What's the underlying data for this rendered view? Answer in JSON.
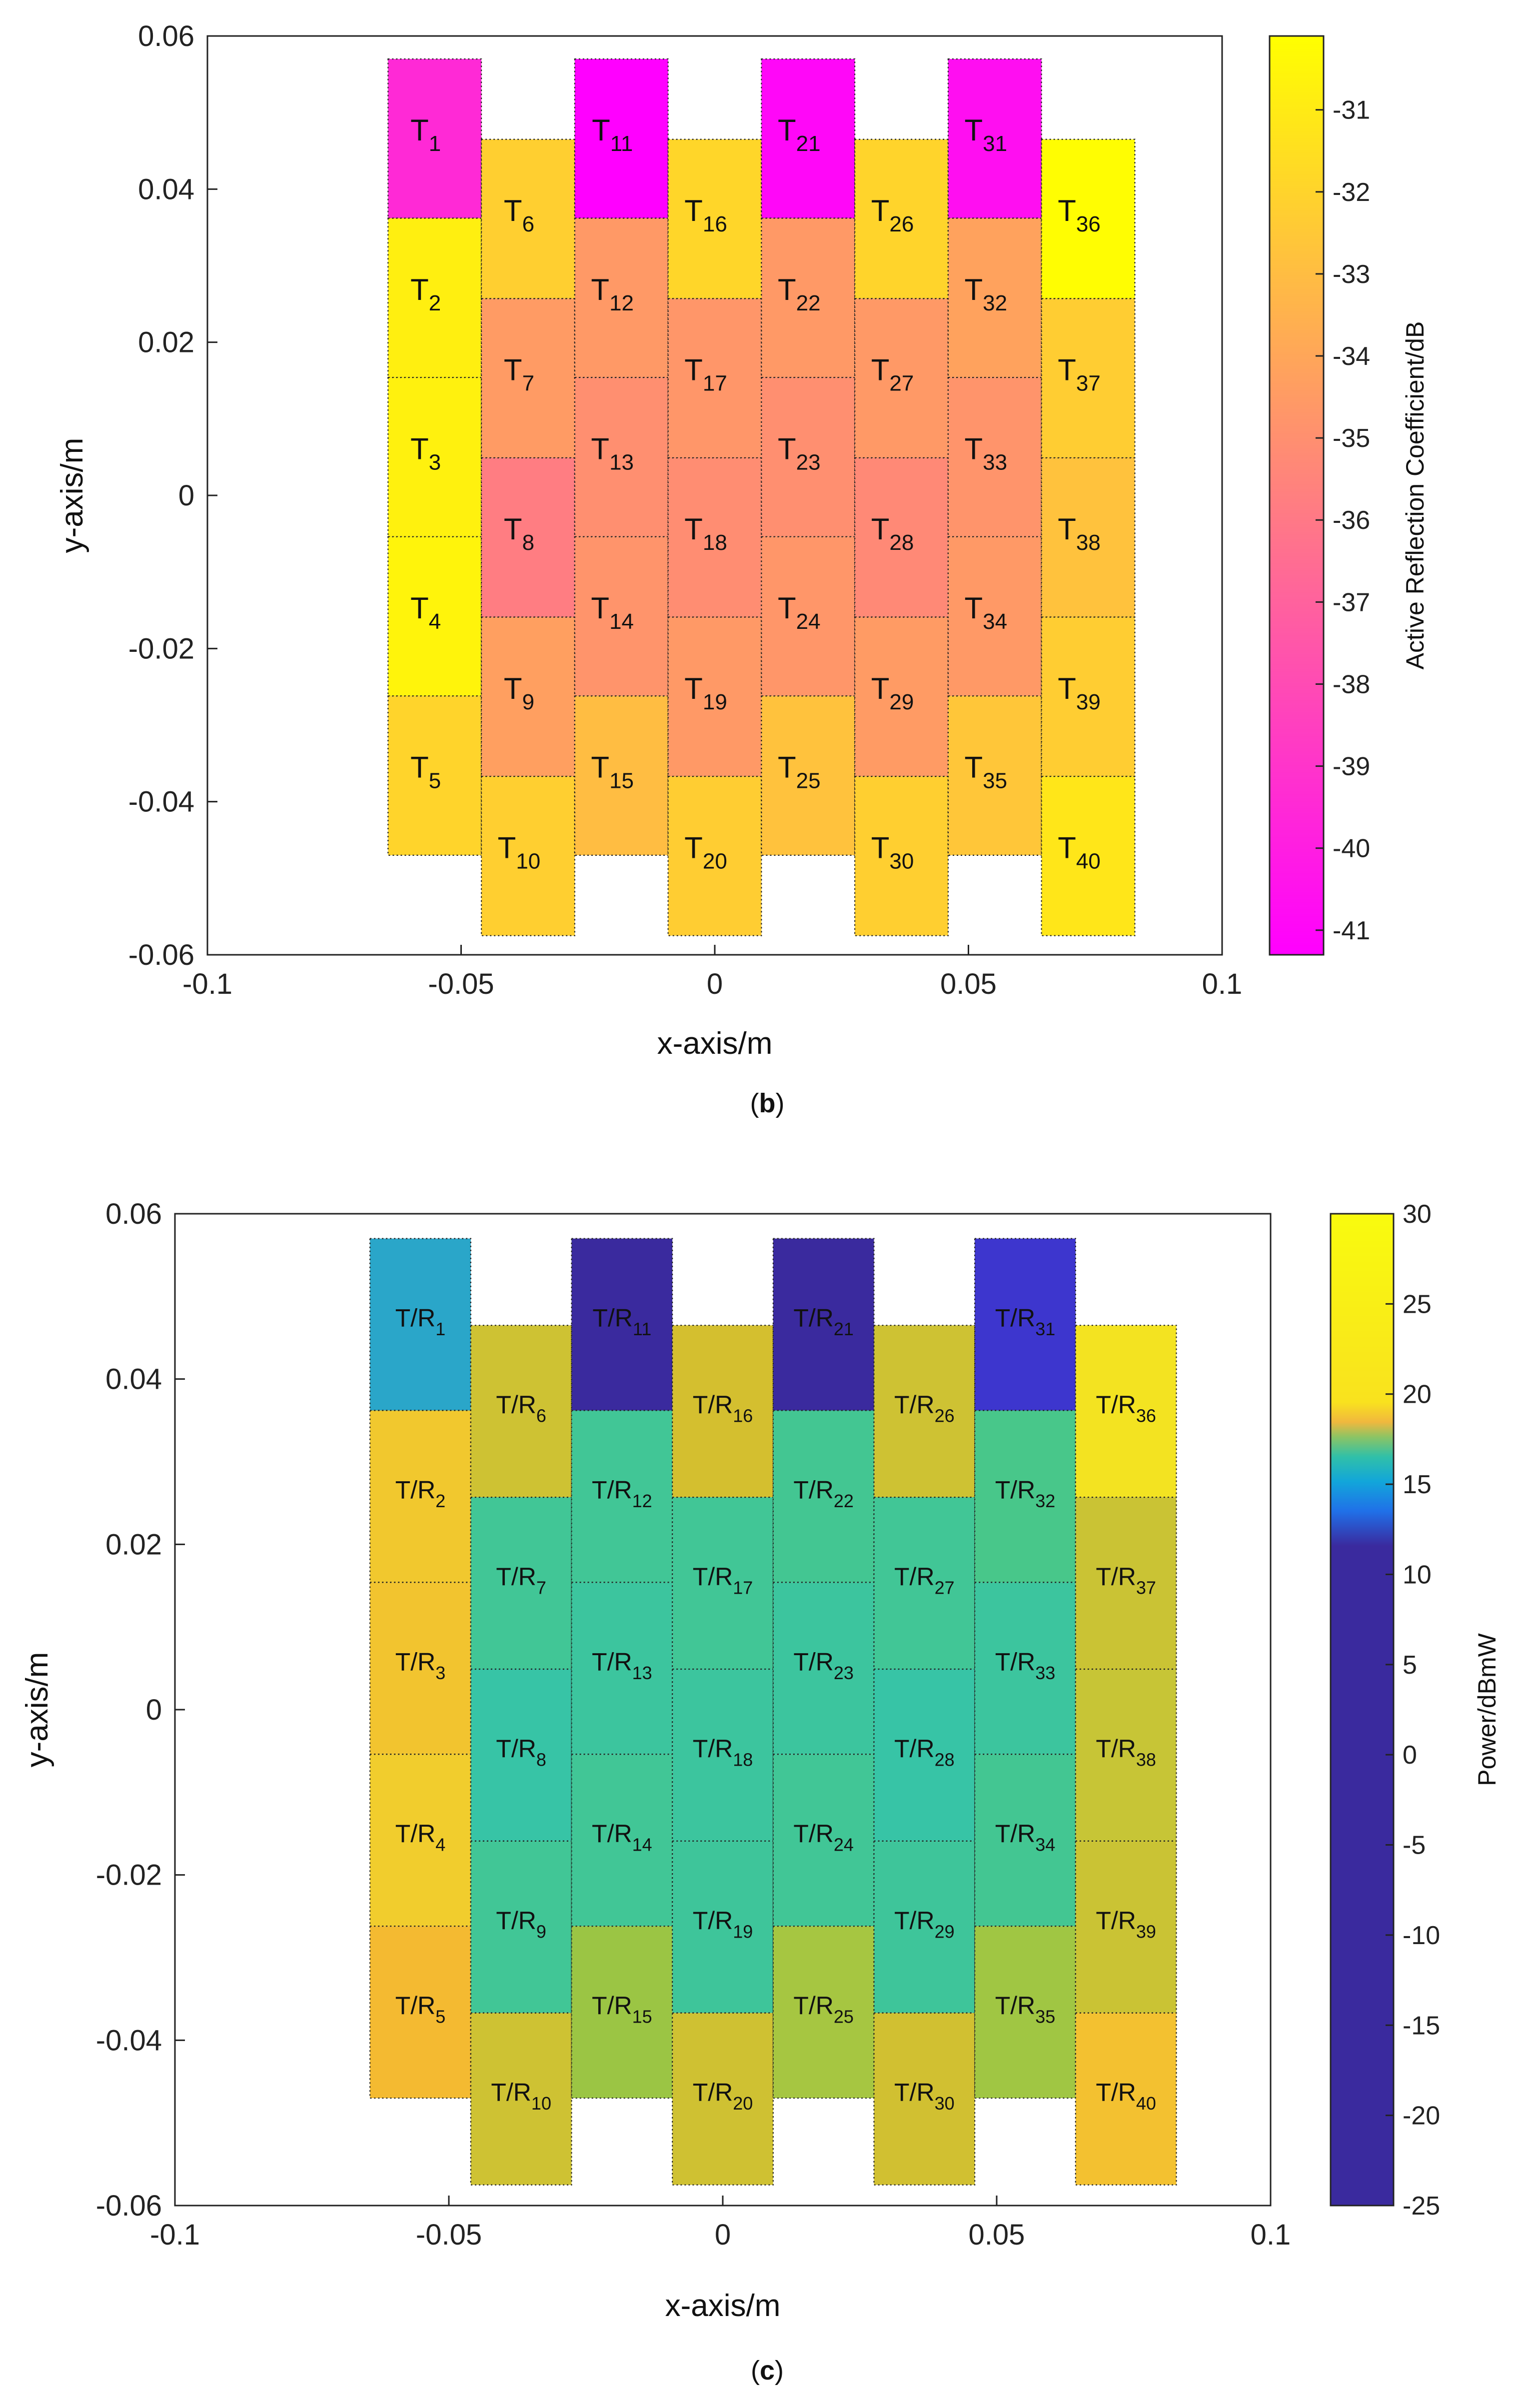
{
  "chart_data": [
    {
      "panel_label": "b",
      "type": "heatmap",
      "title": "",
      "xlabel": "x-axis/m",
      "ylabel": "y-axis/m",
      "xlim": [
        -0.1,
        0.1
      ],
      "ylim": [
        -0.06,
        0.06
      ],
      "x_ticks": [
        -0.1,
        -0.05,
        0,
        0.05,
        0.1
      ],
      "x_tick_labels": [
        "-0.1",
        "-0.05",
        "0",
        "0.05",
        "0.1"
      ],
      "y_ticks": [
        0.06,
        0.04,
        0.02,
        0,
        -0.02,
        -0.04,
        -0.06
      ],
      "y_tick_labels": [
        "0.06",
        "0.04",
        "0.02",
        "0",
        "-0.02",
        "-0.04",
        "-0.06"
      ],
      "grid": false,
      "element_prefix": "T",
      "colorbar": {
        "label": "Active Reflection Coefficient/dB",
        "range": [
          -41.3,
          -30.1
        ],
        "ticks": [
          -31,
          -32,
          -33,
          -34,
          -35,
          -36,
          -37,
          -38,
          -39,
          -40,
          -41
        ],
        "tick_labels": [
          "-31",
          "-32",
          "-33",
          "-34",
          "-35",
          "-36",
          "-37",
          "-38",
          "-39",
          "-40",
          "-41"
        ],
        "colormap": "spring"
      },
      "column_x_centers": [
        -0.0552,
        -0.0368,
        -0.0184,
        0,
        0.0184,
        0.0368,
        0.0552,
        0.0736
      ],
      "column_top_y": [
        0.057,
        0.0465,
        0.057,
        0.0465,
        0.057,
        0.0465,
        0.057,
        0.0465
      ],
      "cell_width": 0.0184,
      "cell_height": 0.0208,
      "elements": [
        {
          "id": 1,
          "col": 0,
          "row": 0,
          "value": -39.5
        },
        {
          "id": 2,
          "col": 0,
          "row": 1,
          "value": -30.8
        },
        {
          "id": 3,
          "col": 0,
          "row": 2,
          "value": -30.7
        },
        {
          "id": 4,
          "col": 0,
          "row": 3,
          "value": -30.6
        },
        {
          "id": 5,
          "col": 0,
          "row": 4,
          "value": -32.0
        },
        {
          "id": 6,
          "col": 1,
          "row": 0,
          "value": -32.2
        },
        {
          "id": 7,
          "col": 1,
          "row": 1,
          "value": -34.5
        },
        {
          "id": 8,
          "col": 1,
          "row": 2,
          "value": -35.8
        },
        {
          "id": 9,
          "col": 1,
          "row": 3,
          "value": -34.3
        },
        {
          "id": 10,
          "col": 1,
          "row": 4,
          "value": -32.2
        },
        {
          "id": 11,
          "col": 2,
          "row": 0,
          "value": -41.3
        },
        {
          "id": 12,
          "col": 2,
          "row": 1,
          "value": -34.6
        },
        {
          "id": 13,
          "col": 2,
          "row": 2,
          "value": -35.0
        },
        {
          "id": 14,
          "col": 2,
          "row": 3,
          "value": -34.8
        },
        {
          "id": 15,
          "col": 2,
          "row": 4,
          "value": -33.0
        },
        {
          "id": 16,
          "col": 3,
          "row": 0,
          "value": -31.9
        },
        {
          "id": 17,
          "col": 3,
          "row": 1,
          "value": -34.7
        },
        {
          "id": 18,
          "col": 3,
          "row": 2,
          "value": -35.1
        },
        {
          "id": 19,
          "col": 3,
          "row": 3,
          "value": -34.6
        },
        {
          "id": 20,
          "col": 3,
          "row": 4,
          "value": -32.3
        },
        {
          "id": 21,
          "col": 4,
          "row": 0,
          "value": -41.0
        },
        {
          "id": 22,
          "col": 4,
          "row": 1,
          "value": -34.6
        },
        {
          "id": 23,
          "col": 4,
          "row": 2,
          "value": -35.0
        },
        {
          "id": 24,
          "col": 4,
          "row": 3,
          "value": -34.7
        },
        {
          "id": 25,
          "col": 4,
          "row": 4,
          "value": -32.8
        },
        {
          "id": 26,
          "col": 5,
          "row": 0,
          "value": -32.0
        },
        {
          "id": 27,
          "col": 5,
          "row": 1,
          "value": -34.6
        },
        {
          "id": 28,
          "col": 5,
          "row": 2,
          "value": -35.3
        },
        {
          "id": 29,
          "col": 5,
          "row": 3,
          "value": -34.5
        },
        {
          "id": 30,
          "col": 5,
          "row": 4,
          "value": -32.2
        },
        {
          "id": 31,
          "col": 6,
          "row": 0,
          "value": -40.7
        },
        {
          "id": 32,
          "col": 6,
          "row": 1,
          "value": -34.2
        },
        {
          "id": 33,
          "col": 6,
          "row": 2,
          "value": -34.8
        },
        {
          "id": 34,
          "col": 6,
          "row": 3,
          "value": -34.6
        },
        {
          "id": 35,
          "col": 6,
          "row": 4,
          "value": -32.6
        },
        {
          "id": 36,
          "col": 7,
          "row": 0,
          "value": -30.2
        },
        {
          "id": 37,
          "col": 7,
          "row": 1,
          "value": -32.3
        },
        {
          "id": 38,
          "col": 7,
          "row": 2,
          "value": -32.8
        },
        {
          "id": 39,
          "col": 7,
          "row": 3,
          "value": -32.3
        },
        {
          "id": 40,
          "col": 7,
          "row": 4,
          "value": -31.2
        }
      ]
    },
    {
      "panel_label": "c",
      "type": "heatmap",
      "title": "",
      "xlabel": "x-axis/m",
      "ylabel": "y-axis/m",
      "xlim": [
        -0.1,
        0.1
      ],
      "ylim": [
        -0.06,
        0.06
      ],
      "x_ticks": [
        -0.1,
        -0.05,
        0,
        0.05,
        0.1
      ],
      "x_tick_labels": [
        "-0.1",
        "-0.05",
        "0",
        "0.05",
        "0.1"
      ],
      "y_ticks": [
        0.06,
        0.04,
        0.02,
        0,
        -0.02,
        -0.04,
        -0.06
      ],
      "y_tick_labels": [
        "0.06",
        "0.04",
        "0.02",
        "0",
        "-0.02",
        "-0.04",
        "-0.06"
      ],
      "grid": false,
      "element_prefix": "T/R",
      "colorbar": {
        "label": "Power/dBmW",
        "range": [
          -25,
          30
        ],
        "ticks": [
          30,
          25,
          20,
          15,
          10,
          5,
          0,
          -5,
          -10,
          -15,
          -20,
          -25
        ],
        "tick_labels": [
          "30",
          "25",
          "20",
          "15",
          "10",
          "5",
          "0",
          "-5",
          "-10",
          "-15",
          "-20",
          "-25"
        ],
        "colormap": "parula-like"
      },
      "column_x_centers": [
        -0.0552,
        -0.0368,
        -0.0184,
        0,
        0.0184,
        0.0368,
        0.0552,
        0.0736
      ],
      "column_top_y": [
        0.057,
        0.0465,
        0.057,
        0.0465,
        0.057,
        0.0465,
        0.057,
        0.0465
      ],
      "cell_width": 0.0184,
      "cell_height": 0.0208,
      "elements": [
        {
          "id": 1,
          "col": 0,
          "row": 0,
          "value": 13.8
        },
        {
          "id": 2,
          "col": 0,
          "row": 1,
          "value": 19.0
        },
        {
          "id": 3,
          "col": 0,
          "row": 2,
          "value": 18.6
        },
        {
          "id": 4,
          "col": 0,
          "row": 3,
          "value": 19.4
        },
        {
          "id": 5,
          "col": 0,
          "row": 4,
          "value": 17.7
        },
        {
          "id": 6,
          "col": 1,
          "row": 0,
          "value": 17.0
        },
        {
          "id": 7,
          "col": 1,
          "row": 1,
          "value": 15.1
        },
        {
          "id": 8,
          "col": 1,
          "row": 2,
          "value": 14.7
        },
        {
          "id": 9,
          "col": 1,
          "row": 3,
          "value": 15.1
        },
        {
          "id": 10,
          "col": 1,
          "row": 4,
          "value": 17.0
        },
        {
          "id": 11,
          "col": 2,
          "row": 0,
          "value": -20.0
        },
        {
          "id": 12,
          "col": 2,
          "row": 1,
          "value": 15.1
        },
        {
          "id": 13,
          "col": 2,
          "row": 2,
          "value": 14.9
        },
        {
          "id": 14,
          "col": 2,
          "row": 3,
          "value": 15.1
        },
        {
          "id": 15,
          "col": 2,
          "row": 4,
          "value": 15.8
        },
        {
          "id": 16,
          "col": 3,
          "row": 0,
          "value": 17.4
        },
        {
          "id": 17,
          "col": 3,
          "row": 1,
          "value": 15.1
        },
        {
          "id": 18,
          "col": 3,
          "row": 2,
          "value": 14.9
        },
        {
          "id": 19,
          "col": 3,
          "row": 3,
          "value": 15.0
        },
        {
          "id": 20,
          "col": 3,
          "row": 4,
          "value": 17.1
        },
        {
          "id": 21,
          "col": 4,
          "row": 0,
          "value": -20.0
        },
        {
          "id": 22,
          "col": 4,
          "row": 1,
          "value": 15.2
        },
        {
          "id": 23,
          "col": 4,
          "row": 2,
          "value": 14.9
        },
        {
          "id": 24,
          "col": 4,
          "row": 3,
          "value": 15.1
        },
        {
          "id": 25,
          "col": 4,
          "row": 4,
          "value": 16.0
        },
        {
          "id": 26,
          "col": 5,
          "row": 0,
          "value": 17.0
        },
        {
          "id": 27,
          "col": 5,
          "row": 1,
          "value": 15.1
        },
        {
          "id": 28,
          "col": 5,
          "row": 2,
          "value": 14.7
        },
        {
          "id": 29,
          "col": 5,
          "row": 3,
          "value": 15.0
        },
        {
          "id": 30,
          "col": 5,
          "row": 4,
          "value": 17.2
        },
        {
          "id": 31,
          "col": 6,
          "row": 0,
          "value": 0.0
        },
        {
          "id": 32,
          "col": 6,
          "row": 1,
          "value": 15.4
        },
        {
          "id": 33,
          "col": 6,
          "row": 2,
          "value": 14.9
        },
        {
          "id": 34,
          "col": 6,
          "row": 3,
          "value": 15.2
        },
        {
          "id": 35,
          "col": 6,
          "row": 4,
          "value": 15.9
        },
        {
          "id": 36,
          "col": 7,
          "row": 0,
          "value": 22.0
        },
        {
          "id": 37,
          "col": 7,
          "row": 1,
          "value": 16.8
        },
        {
          "id": 38,
          "col": 7,
          "row": 2,
          "value": 16.6
        },
        {
          "id": 39,
          "col": 7,
          "row": 3,
          "value": 16.8
        },
        {
          "id": 40,
          "col": 7,
          "row": 4,
          "value": 18.3
        }
      ]
    }
  ]
}
